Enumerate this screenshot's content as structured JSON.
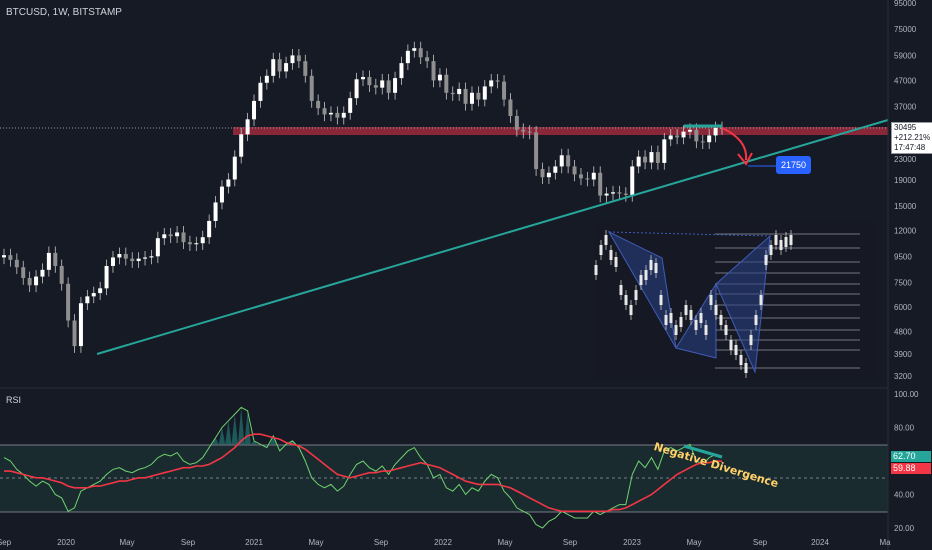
{
  "header": {
    "symbol": "BTCUSD, 1W, BITSTAMP"
  },
  "rsi_panel": {
    "title": "RSI"
  },
  "annotations": {
    "target_label": "21750",
    "negative_divergence": "Negative Divergence"
  },
  "last_price_tag": {
    "price": "30495",
    "change": "+212.21%",
    "countdown": "17:47:48"
  },
  "rsi_tags": {
    "rsi": "62.70",
    "rsi_ma": "59.88"
  },
  "colors": {
    "background": "#161a25",
    "candle": "#e6e6e6",
    "trendline": "#26a69a",
    "resistance_zone": "#9e2a3d",
    "rsi_line": "#6fd36f",
    "rsi_ma_line": "#f23645",
    "arrow": "#f23645",
    "target_box": "#2962ff",
    "inset_pattern": "#2a3f86"
  },
  "chart_data": [
    {
      "type": "candlestick",
      "title": "BTCUSD, 1W, BITSTAMP",
      "y_scale": "log",
      "ylim": [
        2900,
        95000
      ],
      "y_ticks": [
        "95000",
        "75000",
        "59000",
        "47000",
        "37000",
        "30495",
        "23000",
        "19000",
        "15000",
        "12000",
        "9500",
        "7500",
        "6000",
        "4800",
        "3900",
        "3200"
      ],
      "x_ticks": [
        "Sep",
        "2020",
        "May",
        "Sep",
        "2021",
        "May",
        "Sep",
        "2022",
        "May",
        "Sep",
        "2023",
        "May",
        "Sep",
        "2024",
        "Ma"
      ],
      "close_approx": [
        9600,
        9200,
        8600,
        7800,
        7300,
        7900,
        8400,
        9800,
        8700,
        7400,
        5300,
        4200,
        6200,
        6600,
        6800,
        7100,
        8700,
        9400,
        9700,
        9300,
        9100,
        9300,
        9400,
        9500,
        11200,
        11600,
        11400,
        11800,
        10800,
        10600,
        10700,
        11300,
        13100,
        15500,
        17900,
        19100,
        23500,
        28800,
        33000,
        39000,
        46000,
        49000,
        57000,
        51000,
        55000,
        59000,
        56000,
        49000,
        39000,
        36500,
        34500,
        35000,
        33500,
        35000,
        40000,
        47500,
        48500,
        45000,
        44000,
        47000,
        42000,
        48000,
        55000,
        61500,
        63000,
        58000,
        56000,
        47000,
        49500,
        42000,
        41500,
        43500,
        38000,
        42000,
        39500,
        44500,
        47000,
        46500,
        39500,
        34000,
        30000,
        29500,
        29300,
        21000,
        19500,
        20300,
        21500,
        23800,
        21500,
        20000,
        19300,
        19100,
        20300,
        16500,
        16800,
        17000,
        16800,
        16600,
        21500,
        23500,
        22300,
        24500,
        22200,
        27500,
        28500,
        28000,
        29500,
        30000,
        27000,
        26800,
        28500,
        30500,
        30495
      ],
      "trendline": [
        {
          "x": "2020-03",
          "y": 3900
        },
        {
          "x": "2023-08",
          "y": 35000
        }
      ],
      "resistance_zone": [
        29000,
        31500
      ],
      "projection_target": 21750
    },
    {
      "type": "line",
      "title": "RSI",
      "ylim": [
        20,
        100
      ],
      "y_ticks": [
        "100.00",
        "80.00",
        "62.70",
        "59.88",
        "40.00",
        "20.00"
      ],
      "bands": [
        30,
        70
      ],
      "series": [
        {
          "values": [
            62,
            60,
            55,
            52,
            48,
            45,
            48,
            46,
            40,
            38,
            30,
            32,
            42,
            44,
            46,
            48,
            52,
            55,
            56,
            54,
            53,
            55,
            56,
            58,
            62,
            64,
            63,
            65,
            60,
            58,
            59,
            62,
            68,
            74,
            80,
            84,
            88,
            92,
            90,
            72,
            70,
            68,
            75,
            66,
            70,
            72,
            68,
            60,
            50,
            46,
            44,
            46,
            42,
            45,
            52,
            58,
            60,
            56,
            54,
            57,
            52,
            58,
            62,
            66,
            68,
            62,
            58,
            50,
            52,
            44,
            42,
            46,
            40,
            44,
            42,
            48,
            52,
            50,
            42,
            38,
            32,
            30,
            28,
            22,
            20,
            24,
            26,
            30,
            28,
            26,
            26,
            26,
            30,
            28,
            30,
            32,
            34,
            34,
            52,
            60,
            56,
            62,
            55,
            66,
            68,
            66,
            68,
            70,
            60,
            58,
            62,
            64,
            62.7
          ]
        },
        {
          "values": [
            54,
            54,
            53,
            52,
            51,
            50,
            50,
            49,
            48,
            47,
            45,
            44,
            44,
            44,
            45,
            45,
            46,
            47,
            48,
            48,
            49,
            50,
            50,
            51,
            52,
            53,
            54,
            55,
            56,
            56,
            57,
            57,
            58,
            60,
            62,
            65,
            68,
            72,
            75,
            76,
            76,
            75,
            74,
            73,
            71,
            70,
            69,
            67,
            64,
            61,
            58,
            55,
            52,
            51,
            50,
            51,
            52,
            53,
            53,
            54,
            54,
            55,
            56,
            57,
            58,
            59,
            58,
            57,
            56,
            54,
            52,
            50,
            48,
            47,
            46,
            46,
            46,
            46,
            45,
            44,
            42,
            40,
            38,
            36,
            34,
            32,
            31,
            30,
            30,
            30,
            30,
            30,
            30,
            30,
            30,
            31,
            31,
            32,
            34,
            36,
            38,
            40,
            43,
            46,
            49,
            52,
            54,
            56,
            58,
            59,
            59,
            60,
            59.88
          ]
        }
      ]
    }
  ]
}
